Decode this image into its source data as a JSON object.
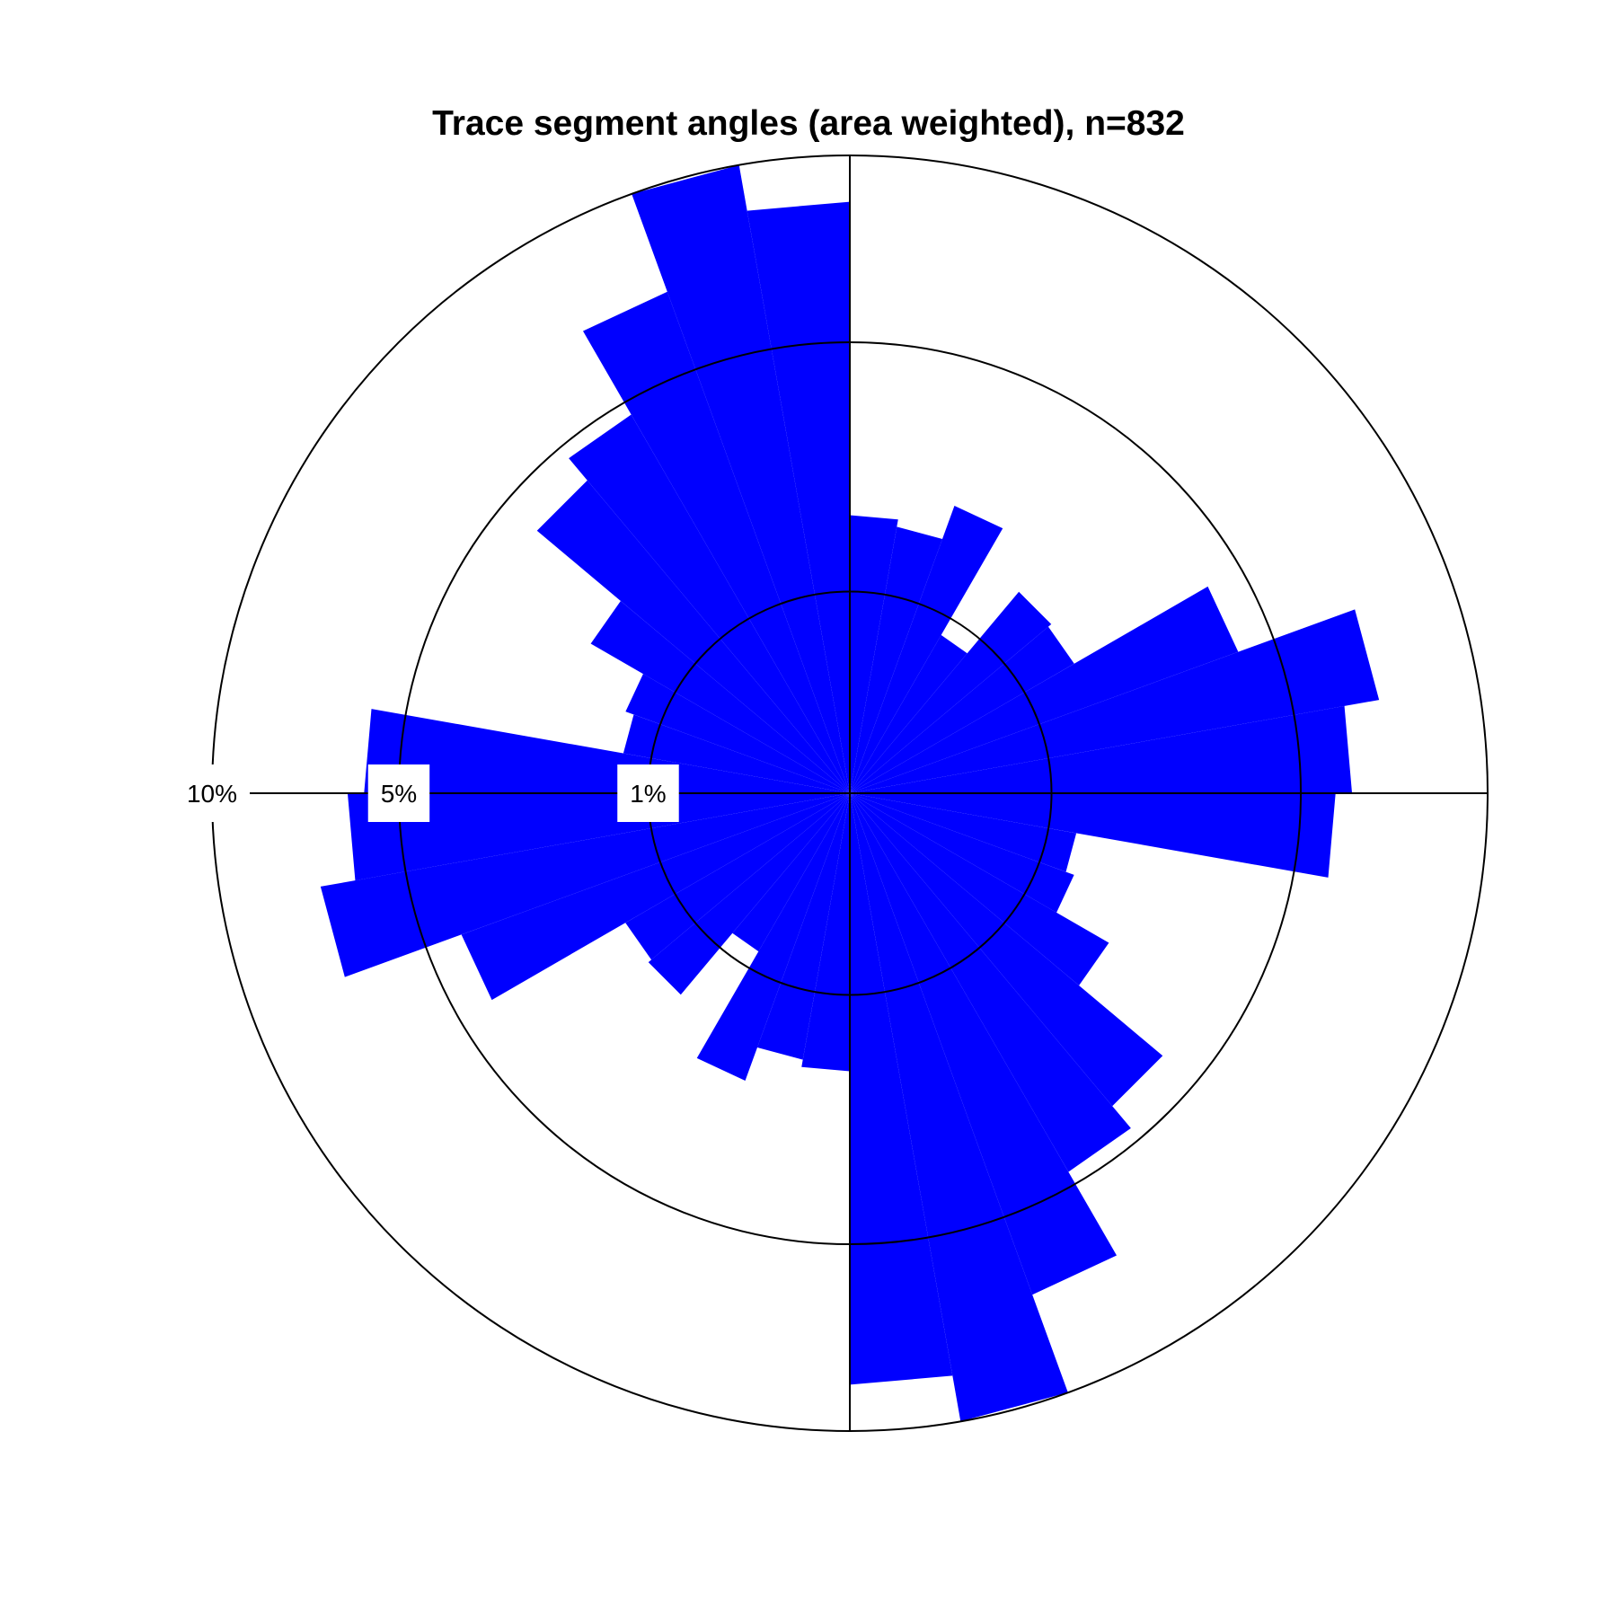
{
  "chart_data": {
    "type": "polar-histogram",
    "title": "Trace segment angles (area weighted), n=832",
    "bin_width_deg": 10,
    "direction": "counterclockwise, 0° = east",
    "symmetric": true,
    "bins": [
      {
        "start_deg": 0,
        "end_deg": 10,
        "value": 6.2
      },
      {
        "start_deg": 10,
        "end_deg": 20,
        "value": 7.1
      },
      {
        "start_deg": 20,
        "end_deg": 30,
        "value": 4.2
      },
      {
        "start_deg": 30,
        "end_deg": 40,
        "value": 1.65
      },
      {
        "start_deg": 40,
        "end_deg": 50,
        "value": 1.7
      },
      {
        "start_deg": 50,
        "end_deg": 60,
        "value": 0.82
      },
      {
        "start_deg": 60,
        "end_deg": 70,
        "value": 2.3
      },
      {
        "start_deg": 70,
        "end_deg": 80,
        "value": 1.8
      },
      {
        "start_deg": 80,
        "end_deg": 90,
        "value": 1.9
      },
      {
        "start_deg": 90,
        "end_deg": 100,
        "value": 8.6
      },
      {
        "start_deg": 100,
        "end_deg": 110,
        "value": 10.0
      },
      {
        "start_deg": 110,
        "end_deg": 120,
        "value": 7.0
      },
      {
        "start_deg": 120,
        "end_deg": 130,
        "value": 4.7
      },
      {
        "start_deg": 130,
        "end_deg": 140,
        "value": 4.1
      },
      {
        "start_deg": 140,
        "end_deg": 150,
        "value": 2.2
      },
      {
        "start_deg": 150,
        "end_deg": 160,
        "value": 1.4
      },
      {
        "start_deg": 160,
        "end_deg": 170,
        "value": 1.3
      },
      {
        "start_deg": 170,
        "end_deg": 180,
        "value": 5.8
      }
    ],
    "rings": [
      {
        "value": 1,
        "label": "1%"
      },
      {
        "value": 5,
        "label": "5%"
      },
      {
        "value": 10,
        "label": "10%"
      }
    ],
    "radial_scale": "sqrt",
    "r_max": 10,
    "grid": true,
    "bar_color": "#0000ff",
    "line_color": "#000000"
  }
}
